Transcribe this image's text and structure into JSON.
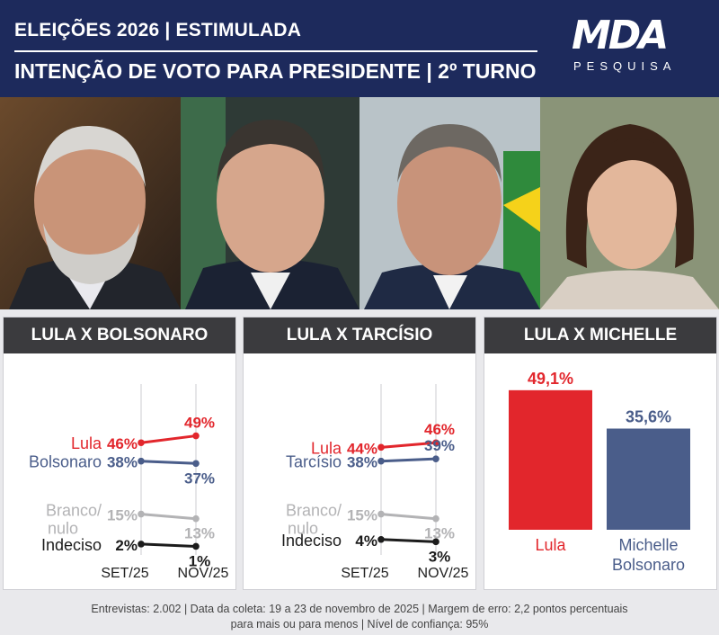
{
  "header": {
    "line1": "ELEIÇÕES 2026 | ESTIMULADA",
    "line2": "INTENÇÃO DE VOTO PARA PRESIDENTE | 2º TURNO",
    "logo": "MDA",
    "logo_sub": "PESQUISA"
  },
  "colors": {
    "red": "#e2262c",
    "blue": "#4a5d8a",
    "gray": "#b3b3b5",
    "black": "#1c1c1c",
    "navy": "#1d2a5c"
  },
  "footer": {
    "line1": "Entrevistas: 2.002  | Data da coleta: 19 a 23 de novembro de 2025 | Margem de erro: 2,2 pontos percentuais",
    "line2": "para mais ou para menos | Nível de confiança: 95%"
  },
  "chart_data": [
    {
      "type": "line",
      "title": "LULA X BOLSONARO",
      "x": [
        "SET/25",
        "NOV/25"
      ],
      "series": [
        {
          "name": "Lula",
          "values": [
            46,
            49
          ],
          "labels": [
            "46%",
            "49%"
          ],
          "color": "#e2262c"
        },
        {
          "name": "Bolsonaro",
          "values": [
            38,
            37
          ],
          "labels": [
            "38%",
            "37%"
          ],
          "color": "#4a5d8a"
        },
        {
          "name": "Branco/ nulo",
          "values": [
            15,
            13
          ],
          "labels": [
            "15%",
            "13%"
          ],
          "color": "#b3b3b5"
        },
        {
          "name": "Indeciso",
          "values": [
            2,
            1
          ],
          "labels": [
            "2%",
            "1%"
          ],
          "color": "#1c1c1c"
        }
      ]
    },
    {
      "type": "line",
      "title": "LULA X TARCÍSIO",
      "x": [
        "SET/25",
        "NOV/25"
      ],
      "series": [
        {
          "name": "Lula",
          "values": [
            44,
            46
          ],
          "labels": [
            "44%",
            "46%"
          ],
          "color": "#e2262c"
        },
        {
          "name": "Tarcísio",
          "values": [
            38,
            39
          ],
          "labels": [
            "38%",
            "39%"
          ],
          "color": "#4a5d8a"
        },
        {
          "name": "Branco/ nulo",
          "values": [
            15,
            13
          ],
          "labels": [
            "15%",
            "13%"
          ],
          "color": "#b3b3b5"
        },
        {
          "name": "Indeciso",
          "values": [
            4,
            3
          ],
          "labels": [
            "4%",
            "3%"
          ],
          "color": "#1c1c1c"
        }
      ]
    },
    {
      "type": "bar",
      "title": "LULA X MICHELLE",
      "categories": [
        "Lula",
        "Michelle Bolsonaro"
      ],
      "values": [
        49.1,
        35.6
      ],
      "labels": [
        "49,1%",
        "35,6%"
      ],
      "colors": [
        "#e2262c",
        "#4a5d8a"
      ]
    }
  ]
}
